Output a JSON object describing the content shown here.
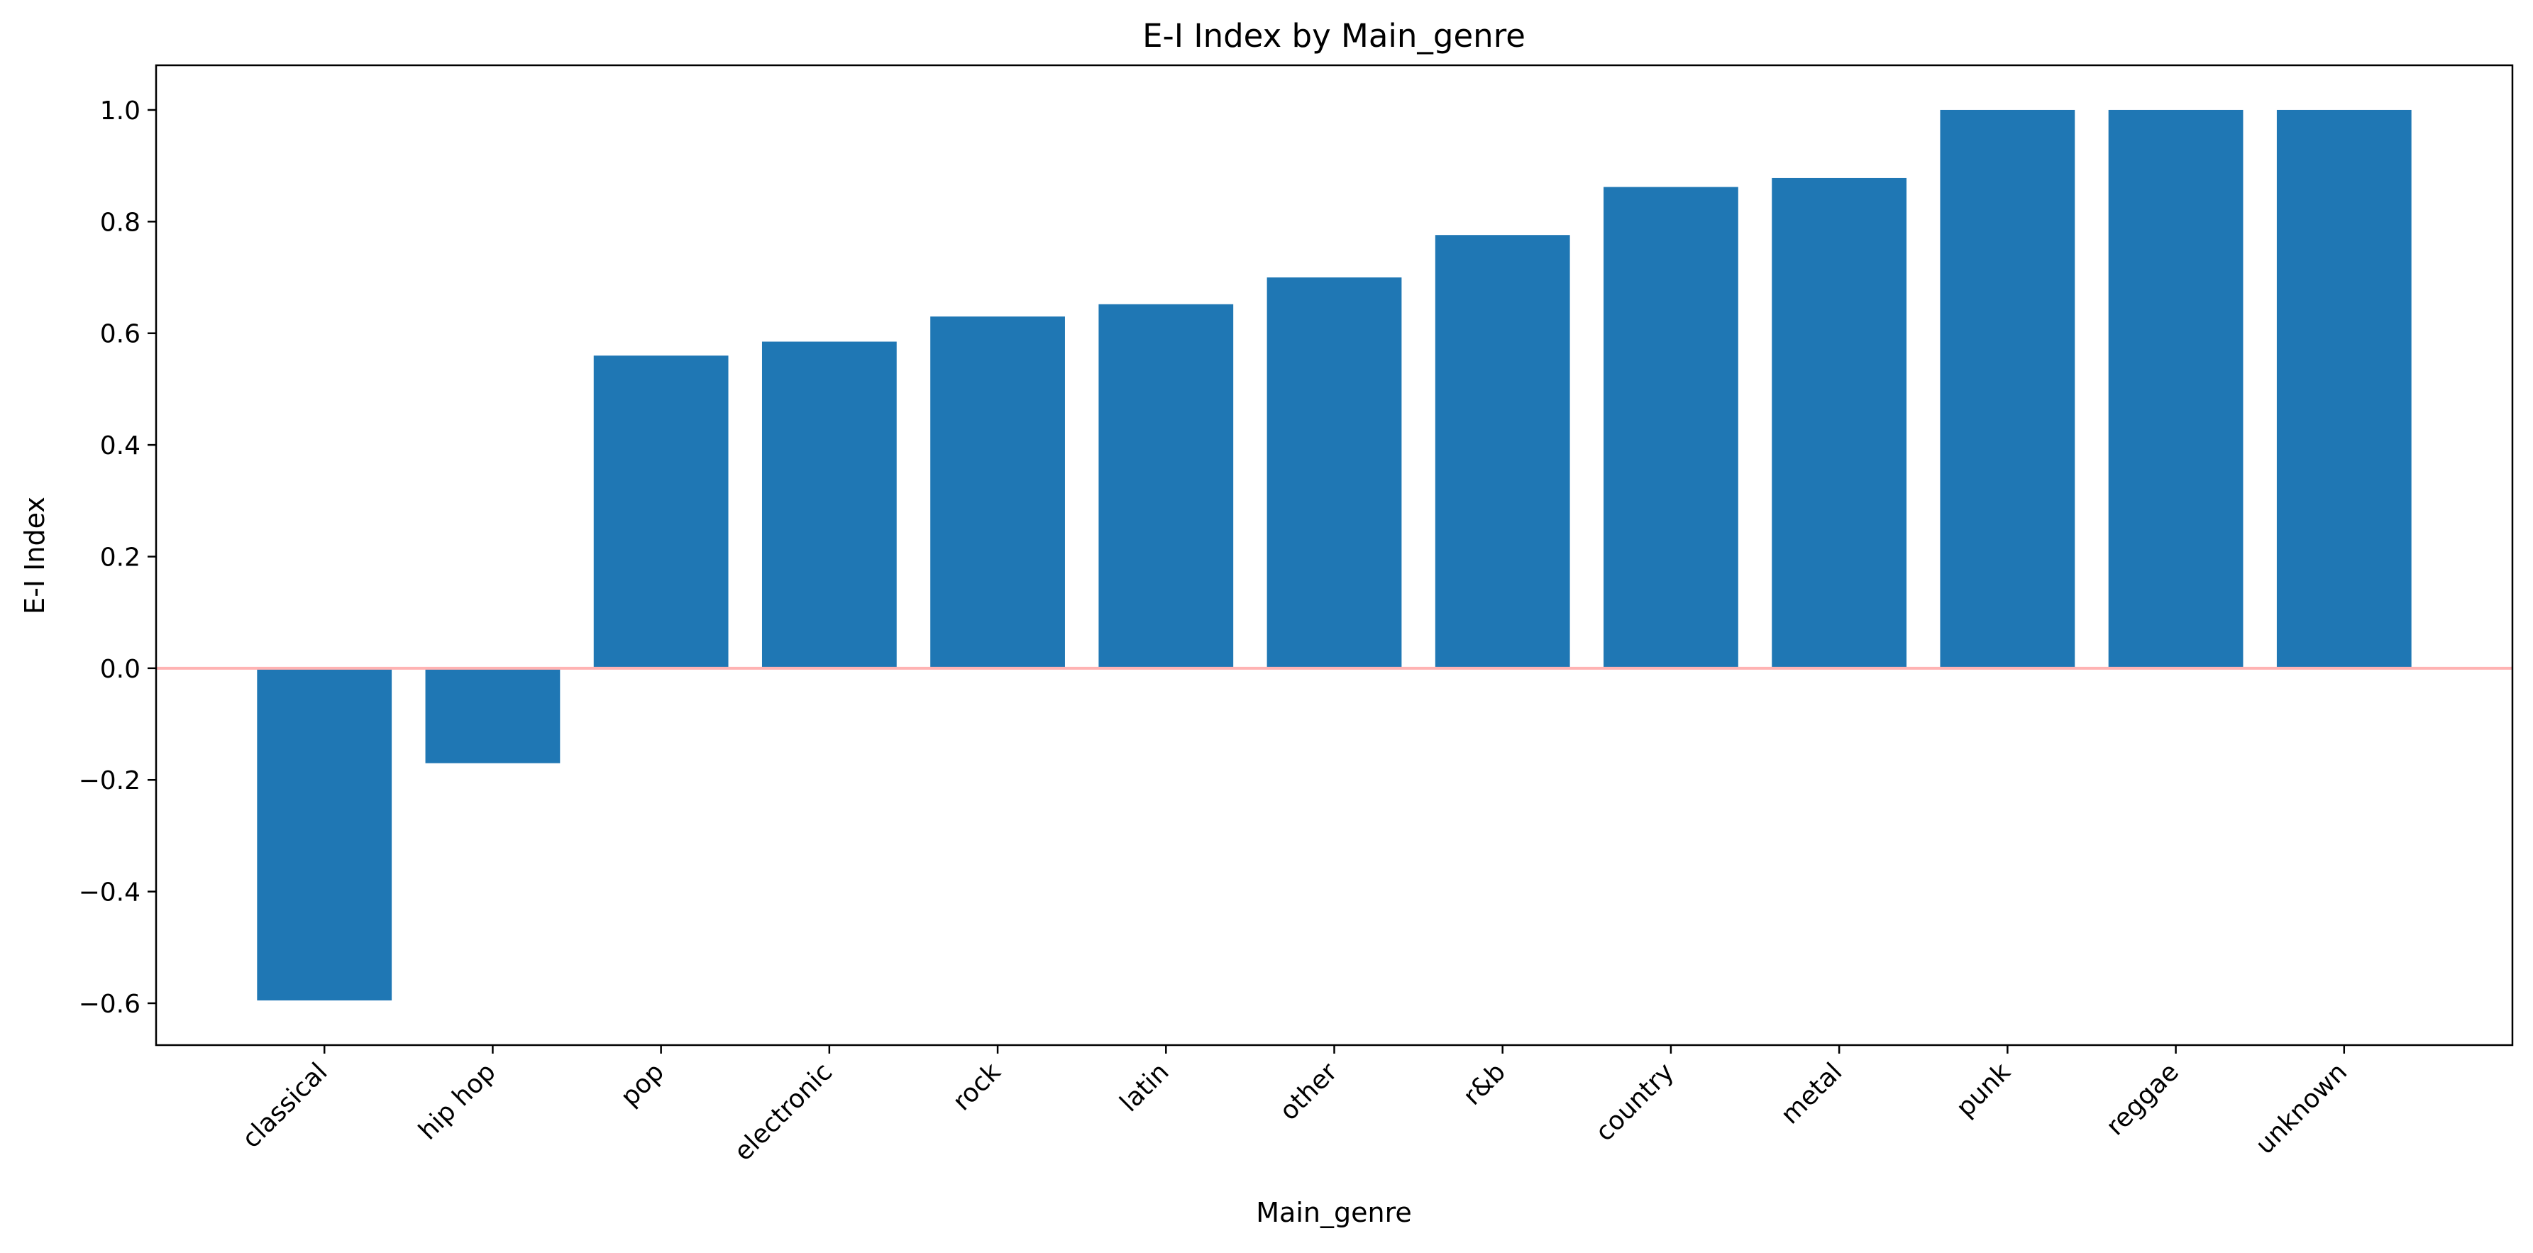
{
  "chart_data": {
    "type": "bar",
    "title": "E-I Index by Main_genre",
    "xlabel": "Main_genre",
    "ylabel": "E-I Index",
    "categories": [
      "classical",
      "hip hop",
      "pop",
      "electronic",
      "rock",
      "latin",
      "other",
      "r&b",
      "country",
      "metal",
      "punk",
      "reggae",
      "unknown"
    ],
    "values": [
      -0.595,
      -0.17,
      0.56,
      0.585,
      0.63,
      0.652,
      0.7,
      0.776,
      0.862,
      0.878,
      1.0,
      1.0,
      1.0
    ],
    "ylim": [
      -0.675,
      1.08
    ],
    "yticks": [
      -0.6,
      -0.4,
      -0.2,
      0.0,
      0.2,
      0.4,
      0.6,
      0.8,
      1.0
    ],
    "ytick_labels": [
      "−0.6",
      "−0.4",
      "−0.2",
      "0.0",
      "0.2",
      "0.4",
      "0.6",
      "0.8",
      "1.0"
    ],
    "reference_line": 0,
    "grid": false,
    "colors": {
      "bar": "#1f77b4",
      "reference_line": "#ffb3b3",
      "axes": "#000000"
    }
  }
}
